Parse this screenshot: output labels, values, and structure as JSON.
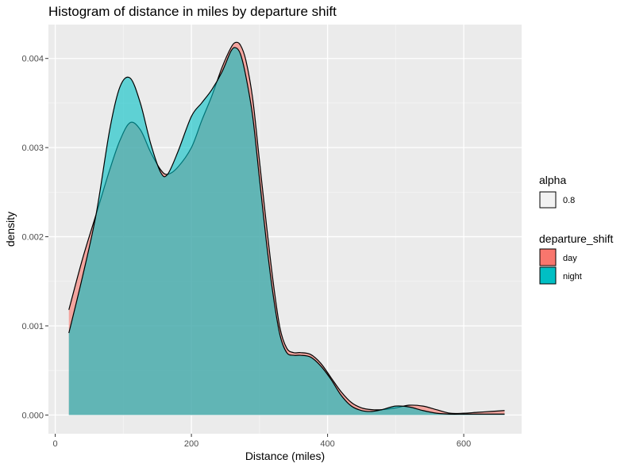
{
  "chart_data": {
    "type": "area",
    "subtype": "density",
    "title": "Histogram of distance in miles by departure shift",
    "xlabel": "Distance (miles)",
    "ylabel": "density",
    "xlim": [
      -10,
      685
    ],
    "ylim": [
      -0.00021,
      0.00438
    ],
    "x_ticks": [
      0,
      200,
      400,
      600
    ],
    "y_ticks": [
      0.0,
      0.001,
      0.002,
      0.003,
      0.004
    ],
    "x_tick_labels": [
      "0",
      "200",
      "400",
      "600"
    ],
    "y_tick_labels": [
      "0.000",
      "0.001",
      "0.002",
      "0.003",
      "0.004"
    ],
    "grid": true,
    "legend_placement": "right",
    "legends": [
      {
        "title": "alpha",
        "entries": [
          {
            "label": "0.8",
            "color": "#f2f2f2"
          }
        ]
      },
      {
        "title": "departure_shift",
        "entries": [
          {
            "label": "day",
            "color": "#F8766D"
          },
          {
            "label": "night",
            "color": "#00BFC4"
          }
        ]
      }
    ],
    "series": [
      {
        "name": "day",
        "color": "#F8766D",
        "x": [
          20,
          40,
          60,
          80,
          95,
          110,
          125,
          140,
          155,
          165,
          180,
          200,
          215,
          230,
          245,
          258,
          265,
          272,
          280,
          290,
          300,
          310,
          320,
          330,
          340,
          350,
          360,
          375,
          390,
          405,
          420,
          435,
          450,
          465,
          480,
          500,
          520,
          540,
          560,
          580,
          600,
          620,
          640,
          660
        ],
        "values": [
          0.00118,
          0.00175,
          0.00225,
          0.00275,
          0.00308,
          0.00328,
          0.0032,
          0.00295,
          0.00275,
          0.0027,
          0.00278,
          0.003,
          0.0033,
          0.00358,
          0.0039,
          0.00412,
          0.00418,
          0.00415,
          0.00398,
          0.00355,
          0.00285,
          0.00215,
          0.0015,
          0.00098,
          0.00075,
          0.0007,
          0.0007,
          0.00068,
          0.00058,
          0.00042,
          0.00026,
          0.00014,
          8e-05,
          6e-05,
          6e-05,
          8e-05,
          0.00011,
          0.0001,
          6e-05,
          2e-05,
          2e-05,
          3e-05,
          4e-05,
          5e-05
        ]
      },
      {
        "name": "night",
        "color": "#00BFC4",
        "x": [
          20,
          40,
          60,
          80,
          95,
          110,
          125,
          140,
          155,
          165,
          180,
          200,
          215,
          230,
          245,
          258,
          265,
          272,
          280,
          290,
          300,
          310,
          320,
          330,
          340,
          350,
          360,
          375,
          390,
          405,
          420,
          435,
          450,
          465,
          480,
          500,
          520,
          540,
          560,
          580,
          600,
          620,
          640,
          660
        ],
        "values": [
          0.00092,
          0.00155,
          0.00225,
          0.0032,
          0.00368,
          0.00378,
          0.0035,
          0.00305,
          0.00272,
          0.0027,
          0.00295,
          0.00335,
          0.0035,
          0.00365,
          0.00385,
          0.00408,
          0.00412,
          0.00405,
          0.0038,
          0.00335,
          0.00265,
          0.00195,
          0.00135,
          0.0009,
          0.0007,
          0.00067,
          0.00067,
          0.00065,
          0.00055,
          0.0004,
          0.00022,
          0.0001,
          5e-05,
          4e-05,
          6e-05,
          0.0001,
          9e-05,
          5e-05,
          2e-05,
          1e-05,
          1e-05,
          1e-05,
          1e-05,
          1e-05
        ]
      }
    ]
  }
}
